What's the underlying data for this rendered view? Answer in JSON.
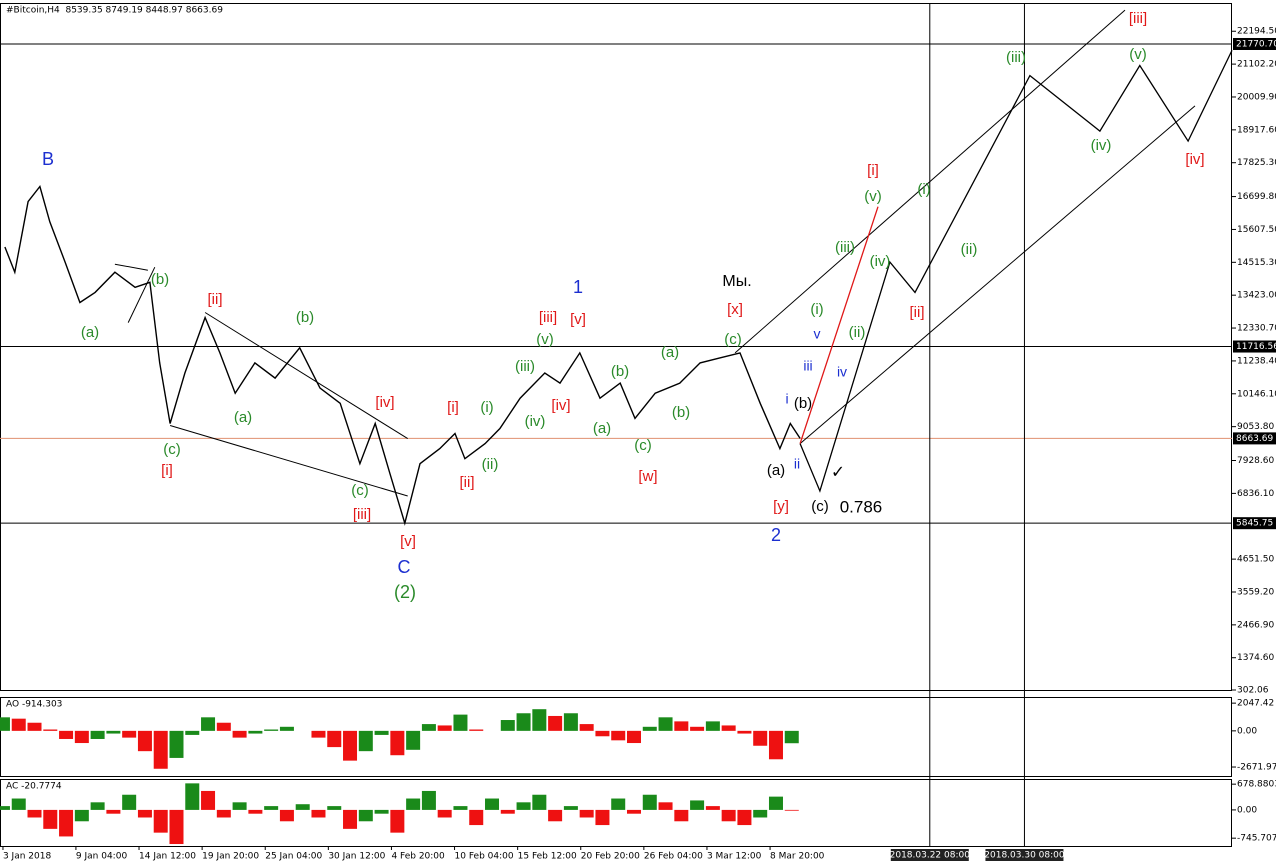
{
  "chart_data": [
    {
      "type": "line",
      "title": "#Bitcoin,H4  8539.35 8749.19 8448.97 8663.69",
      "color": "#000000",
      "x": [
        4,
        24,
        51,
        75,
        95,
        126,
        156,
        187,
        227,
        268,
        298,
        318,
        339,
        369,
        410,
        440,
        471,
        511,
        552,
        602,
        643,
        684,
        724,
        755,
        785,
        815,
        846,
        886,
        917,
        937,
        978,
        1008,
        1049,
        1099,
        1130,
        1170,
        1211,
        1252,
        1282,
        1323,
        1373,
        1414,
        1454,
        1495,
        1536,
        1576,
        1597,
        1617
      ],
      "values": [
        15024,
        14186,
        16532,
        17034,
        15862,
        14521,
        13181,
        13516,
        14186,
        13684,
        13851,
        11171,
        9160,
        10836,
        12679,
        11506,
        10166,
        11171,
        10669,
        11674,
        10334,
        9831,
        7821,
        9160,
        7486,
        5845.75,
        7821,
        8324,
        8826,
        7988,
        8491,
        8994,
        9999,
        10836,
        10501,
        11506,
        9999,
        10501,
        9328,
        10166,
        10501,
        11171,
        11339,
        11506,
        9831,
        8324,
        9160,
        8663.69
      ],
      "xlim": [
        -6,
        2493
      ],
      "ylim": [
        302.06,
        23133
      ],
      "yticks": [
        {
          "value": 22194.5,
          "label": "22194.50"
        },
        {
          "value": 21102.2,
          "label": "21102.20"
        },
        {
          "value": 20009.9,
          "label": "20009.90"
        },
        {
          "value": 18917.6,
          "label": "18917.60"
        },
        {
          "value": 17825.3,
          "label": "17825.30"
        },
        {
          "value": 16699.8,
          "label": "16699.80"
        },
        {
          "value": 15607.5,
          "label": "15607.50"
        },
        {
          "value": 14515.3,
          "label": "14515.30"
        },
        {
          "value": 13423,
          "label": "13423.00"
        },
        {
          "value": 12330.7,
          "label": "12330.70"
        },
        {
          "value": 11238.4,
          "label": "11238.40"
        },
        {
          "value": 10146.1,
          "label": "10146.10"
        },
        {
          "value": 9053.8,
          "label": "9053.80"
        },
        {
          "value": 7928.6,
          "label": "7928.60"
        },
        {
          "value": 6836.1,
          "label": "6836.10"
        },
        {
          "value": 4651.5,
          "label": "4651.50"
        },
        {
          "value": 3559.2,
          "label": "3559.20"
        },
        {
          "value": 2466.9,
          "label": "2466.90"
        },
        {
          "value": 1374.6,
          "label": "1374.60"
        },
        302.06
      ],
      "xticks": [
        {
          "value": 0,
          "label": "3 Jan 2018"
        },
        {
          "value": 148,
          "label": "9 Jan 04:00"
        },
        {
          "value": 276,
          "label": "14 Jan 12:00"
        },
        {
          "value": 404,
          "label": "19 Jan 20:00"
        },
        {
          "value": 532,
          "label": "25 Jan 04:00"
        },
        {
          "value": 660,
          "label": "30 Jan 12:00"
        },
        {
          "value": 788,
          "label": "4 Feb 20:00"
        },
        {
          "value": 916,
          "label": "10 Feb 04:00"
        },
        {
          "value": 1044,
          "label": "15 Feb 12:00"
        },
        {
          "value": 1172,
          "label": "20 Feb 20:00"
        },
        {
          "value": 1300,
          "label": "26 Feb 04:00"
        },
        {
          "value": 1428,
          "label": "3 Mar 12:00"
        },
        {
          "value": 1556,
          "label": "8 Mar 20:00"
        }
      ],
      "hlines": [
        {
          "value": 21770.7,
          "label": "21770.70",
          "color": "#000000"
        },
        {
          "value": 11716.56,
          "label": "11716.56",
          "color": "#000000"
        },
        {
          "value": 8663.69,
          "label": "8663.69",
          "color": "#e09070"
        },
        {
          "value": 5845.75,
          "label": "5845.75",
          "color": "#000000"
        }
      ],
      "vlines": [
        {
          "value": 1880,
          "label": "2018.03.22 08:00"
        },
        {
          "value": 2072,
          "label": "2018.03.30 08:00"
        }
      ],
      "projections": [
        {
          "color": "#000000",
          "x": [
            1617,
            1657,
            1799,
            1850,
            2083,
            2225,
            2306,
            2404,
            2493
          ],
          "values": [
            8491,
            6916,
            14521,
            13516,
            20720,
            18877,
            21055,
            18542,
            21558
          ]
        },
        {
          "color": "#e01818",
          "x": [
            1617,
            1775
          ],
          "values": [
            8491,
            16364
          ]
        }
      ],
      "trendlines": [
        {
          "color": "#000000",
          "x": [
            1617,
            2418
          ],
          "values": [
            8491,
            19715
          ]
        },
        {
          "color": "#000000",
          "x": [
            1485,
            2276
          ],
          "values": [
            11506,
            22898
          ]
        },
        {
          "color": "#000000",
          "x": [
            339,
            821
          ],
          "values": [
            9093,
            6748
          ]
        },
        {
          "color": "#000000",
          "x": [
            410,
            821
          ],
          "values": [
            12846,
            8658
          ]
        },
        {
          "color": "#000000",
          "x": [
            227,
            294
          ],
          "values": [
            14454,
            14253
          ]
        },
        {
          "color": "#000000",
          "x": [
            254,
            308
          ],
          "values": [
            12512,
            14354
          ]
        }
      ],
      "annotations": [
        {
          "text": "B",
          "color": "#1c2fd0"
        },
        {
          "text": "(b)",
          "color": "#2a8a2a"
        },
        {
          "text": "(a)",
          "color": "#2a8a2a"
        },
        {
          "text": "[ii]",
          "color": "#e01818"
        },
        {
          "text": "(b)",
          "color": "#2a8a2a"
        },
        {
          "text": "(a)",
          "color": "#2a8a2a"
        },
        {
          "text": "(c)",
          "color": "#2a8a2a"
        },
        {
          "text": "[i]",
          "color": "#e01818"
        },
        {
          "text": "[iv]",
          "color": "#e01818"
        },
        {
          "text": "(c)",
          "color": "#2a8a2a"
        },
        {
          "text": "[iii]",
          "color": "#e01818"
        },
        {
          "text": "[v]",
          "color": "#e01818"
        },
        {
          "text": "C",
          "color": "#1c2fd0"
        },
        {
          "text": "(2)",
          "color": "#2a8a2a"
        },
        {
          "text": "[i]",
          "color": "#e01818"
        },
        {
          "text": "(i)",
          "color": "#2a8a2a"
        },
        {
          "text": "(ii)",
          "color": "#2a8a2a"
        },
        {
          "text": "[ii]",
          "color": "#e01818"
        },
        {
          "text": "(iii)",
          "color": "#2a8a2a"
        },
        {
          "text": "(iv)",
          "color": "#2a8a2a"
        },
        {
          "text": "[iii]",
          "color": "#e01818"
        },
        {
          "text": "(v)",
          "color": "#2a8a2a"
        },
        {
          "text": "[iv]",
          "color": "#e01818"
        },
        {
          "text": "[v]",
          "color": "#e01818"
        },
        {
          "text": "1",
          "color": "#1c2fd0"
        },
        {
          "text": "(b)",
          "color": "#2a8a2a"
        },
        {
          "text": "(a)",
          "color": "#2a8a2a"
        },
        {
          "text": "(c)",
          "color": "#2a8a2a"
        },
        {
          "text": "(b)",
          "color": "#2a8a2a"
        },
        {
          "text": "(a)",
          "color": "#2a8a2a"
        },
        {
          "text": "[w]",
          "color": "#e01818"
        },
        {
          "text": "Мы.",
          "color": "#000000"
        },
        {
          "text": "[x]",
          "color": "#e01818"
        },
        {
          "text": "(c)",
          "color": "#2a8a2a"
        },
        {
          "text": "i",
          "color": "#1c2fd0"
        },
        {
          "text": "(b)",
          "color": "#000000"
        },
        {
          "text": "(a)",
          "color": "#000000"
        },
        {
          "text": "ii",
          "color": "#1c2fd0"
        },
        {
          "text": "[y]",
          "color": "#e01818"
        },
        {
          "text": "2",
          "color": "#1c2fd0"
        },
        {
          "text": "(c)",
          "color": "#000000"
        },
        {
          "text": "0.786",
          "color": "#000000"
        },
        {
          "text": "✓",
          "color": "#000000"
        },
        {
          "text": "iii",
          "color": "#1c2fd0"
        },
        {
          "text": "v",
          "color": "#1c2fd0"
        },
        {
          "text": "iv",
          "color": "#1c2fd0"
        },
        {
          "text": "(i)",
          "color": "#2a8a2a"
        },
        {
          "text": "(ii)",
          "color": "#2a8a2a"
        },
        {
          "text": "(iii)",
          "color": "#2a8a2a"
        },
        {
          "text": "(iv)",
          "color": "#2a8a2a"
        },
        {
          "text": "(v)",
          "color": "#2a8a2a"
        },
        {
          "text": "[i]",
          "color": "#e01818"
        },
        {
          "text": "[ii]",
          "color": "#e01818"
        },
        {
          "text": "(i)",
          "color": "#2a8a2a"
        },
        {
          "text": "(ii)",
          "color": "#2a8a2a"
        },
        {
          "text": "(iii)",
          "color": "#2a8a2a"
        },
        {
          "text": "[iii]",
          "color": "#e01818"
        },
        {
          "text": "(v)",
          "color": "#2a8a2a"
        },
        {
          "text": "(iv)",
          "color": "#2a8a2a"
        },
        {
          "text": "[iv]",
          "color": "#e01818"
        }
      ]
    },
    {
      "type": "bar",
      "title": "AO -914.303",
      "up_color": "#1a8a1a",
      "down_color": "#ee1111",
      "x": [
        0,
        32,
        64,
        96,
        128,
        160,
        192,
        224,
        256,
        288,
        320,
        352,
        384,
        416,
        448,
        480,
        512,
        544,
        576,
        608,
        640,
        672,
        704,
        736,
        768,
        800,
        832,
        864,
        896,
        928,
        960,
        992,
        1024,
        1056,
        1088,
        1120,
        1152,
        1184,
        1216,
        1248,
        1280,
        1312,
        1344,
        1376,
        1408,
        1440,
        1472,
        1504,
        1536,
        1568,
        1600
      ],
      "values": [
        1000,
        900,
        600,
        100,
        -600,
        -900,
        -600,
        -200,
        -500,
        -1500,
        -2800,
        -2000,
        -300,
        1000,
        600,
        -500,
        -200,
        100,
        300,
        0,
        -500,
        -1200,
        -2200,
        -1500,
        -300,
        -1800,
        -1400,
        500,
        400,
        1200,
        100,
        0,
        800,
        1300,
        1600,
        1100,
        1300,
        500,
        -400,
        -700,
        -900,
        300,
        1000,
        700,
        300,
        700,
        400,
        -200,
        -1100,
        -2100,
        -914.303
      ],
      "xlim": [
        -6,
        2493
      ],
      "ylim": [
        -3335,
        2501
      ],
      "yticks": [
        2047.42,
        {
          "value": 0,
          "label": "0.00"
        },
        -2671.979
      ]
    },
    {
      "type": "bar",
      "title": "AC -20.7774",
      "up_color": "#1a8a1a",
      "down_color": "#ee1111",
      "x": [
        0,
        32,
        64,
        96,
        128,
        160,
        192,
        224,
        256,
        288,
        320,
        352,
        384,
        416,
        448,
        480,
        512,
        544,
        576,
        608,
        640,
        672,
        704,
        736,
        768,
        800,
        832,
        864,
        896,
        928,
        960,
        992,
        1024,
        1056,
        1088,
        1120,
        1152,
        1184,
        1216,
        1248,
        1280,
        1312,
        1344,
        1376,
        1408,
        1440,
        1472,
        1504,
        1536,
        1568,
        1600
      ],
      "values": [
        100,
        300,
        -200,
        -500,
        -700,
        -300,
        200,
        -100,
        400,
        -200,
        -600,
        -900,
        700,
        500,
        -200,
        200,
        -100,
        100,
        -300,
        150,
        -200,
        100,
        -500,
        -300,
        -100,
        -600,
        300,
        500,
        -200,
        100,
        -400,
        300,
        -100,
        200,
        400,
        -300,
        100,
        -200,
        -400,
        300,
        -100,
        400,
        200,
        -300,
        250,
        100,
        -300,
        -400,
        -200,
        350,
        -20.7774
      ],
      "xlim": [
        -6,
        2493
      ],
      "ylim": [
        -952,
        815
      ],
      "yticks": [
        678.8803,
        {
          "value": 0,
          "label": "0.00"
        },
        -745.7074
      ]
    }
  ]
}
